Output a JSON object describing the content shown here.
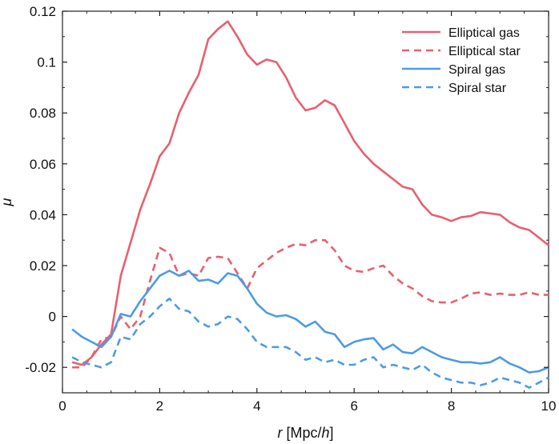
{
  "chart_data": {
    "type": "line",
    "title": "",
    "xlabel": {
      "prefix": "r",
      "middle": " [Mpc/",
      "h": "h",
      "suffix": "]"
    },
    "ylabel": "μ",
    "xlim": [
      0,
      10
    ],
    "ylim": [
      -0.03,
      0.12
    ],
    "xticks": [
      0,
      2,
      4,
      6,
      8,
      10
    ],
    "xtick_labels": [
      "0",
      "2",
      "4",
      "6",
      "8",
      "10"
    ],
    "yticks": [
      -0.02,
      0,
      0.02,
      0.04,
      0.06,
      0.08,
      0.1,
      0.12
    ],
    "ytick_labels": [
      "-0.02",
      "0",
      "0.02",
      "0.04",
      "0.06",
      "0.08",
      "0.1",
      "0.12"
    ],
    "grid": false,
    "legend_position": "top-right",
    "x": [
      0.2,
      0.4,
      0.6,
      0.8,
      1.0,
      1.2,
      1.4,
      1.6,
      1.8,
      2.0,
      2.2,
      2.4,
      2.6,
      2.8,
      3.0,
      3.2,
      3.4,
      3.6,
      3.8,
      4.0,
      4.2,
      4.4,
      4.6,
      4.8,
      5.0,
      5.2,
      5.4,
      5.6,
      5.8,
      6.0,
      6.2,
      6.4,
      6.6,
      6.8,
      7.0,
      7.2,
      7.4,
      7.6,
      7.8,
      8.0,
      8.2,
      8.4,
      8.6,
      8.8,
      9.0,
      9.2,
      9.4,
      9.6,
      9.8,
      10.0
    ],
    "series": [
      {
        "name": "Elliptical gas",
        "color": "#e8606e",
        "dash": "solid",
        "values": [
          -0.018,
          -0.019,
          -0.016,
          -0.011,
          -0.007,
          0.016,
          0.029,
          0.042,
          0.052,
          0.063,
          0.068,
          0.08,
          0.088,
          0.095,
          0.109,
          0.113,
          0.116,
          0.11,
          0.103,
          0.099,
          0.101,
          0.1,
          0.094,
          0.086,
          0.081,
          0.082,
          0.085,
          0.083,
          0.076,
          0.069,
          0.064,
          0.06,
          0.057,
          0.054,
          0.051,
          0.05,
          0.044,
          0.04,
          0.039,
          0.0375,
          0.039,
          0.0395,
          0.041,
          0.0405,
          0.04,
          0.037,
          0.035,
          0.034,
          0.031,
          0.028
        ]
      },
      {
        "name": "Elliptical star",
        "color": "#e8606e",
        "dash": "dashed",
        "values": [
          -0.02,
          -0.02,
          -0.016,
          -0.009,
          -0.008,
          0.0,
          -0.005,
          0.0,
          0.014,
          0.027,
          0.025,
          0.016,
          0.017,
          0.016,
          0.023,
          0.0235,
          0.023,
          0.017,
          0.011,
          0.019,
          0.022,
          0.025,
          0.027,
          0.0285,
          0.028,
          0.03,
          0.03,
          0.026,
          0.02,
          0.018,
          0.0175,
          0.019,
          0.02,
          0.016,
          0.013,
          0.011,
          0.008,
          0.006,
          0.0055,
          0.0055,
          0.007,
          0.009,
          0.0095,
          0.0085,
          0.009,
          0.0085,
          0.0085,
          0.0095,
          0.0085,
          0.0085
        ]
      },
      {
        "name": "Spiral gas",
        "color": "#4d9be6",
        "dash": "solid",
        "values": [
          -0.005,
          -0.008,
          -0.01,
          -0.012,
          -0.008,
          0.001,
          0.0,
          0.006,
          0.011,
          0.016,
          0.018,
          0.016,
          0.018,
          0.014,
          0.0145,
          0.013,
          0.017,
          0.016,
          0.011,
          0.005,
          0.0015,
          0.0,
          0.0005,
          -0.001,
          -0.004,
          -0.002,
          -0.006,
          -0.007,
          -0.012,
          -0.01,
          -0.009,
          -0.0085,
          -0.013,
          -0.011,
          -0.014,
          -0.0145,
          -0.012,
          -0.014,
          -0.016,
          -0.017,
          -0.018,
          -0.018,
          -0.0185,
          -0.018,
          -0.016,
          -0.0185,
          -0.02,
          -0.022,
          -0.0215,
          -0.02
        ]
      },
      {
        "name": "Spiral star",
        "color": "#4d9be6",
        "dash": "dashed",
        "values": [
          -0.016,
          -0.018,
          -0.019,
          -0.02,
          -0.018,
          -0.008,
          -0.009,
          -0.003,
          0.0,
          0.004,
          0.007,
          0.003,
          0.002,
          -0.002,
          -0.004,
          -0.003,
          0.0,
          -0.001,
          -0.005,
          -0.01,
          -0.012,
          -0.012,
          -0.012,
          -0.014,
          -0.017,
          -0.016,
          -0.018,
          -0.017,
          -0.019,
          -0.019,
          -0.017,
          -0.016,
          -0.02,
          -0.019,
          -0.02,
          -0.021,
          -0.019,
          -0.022,
          -0.024,
          -0.025,
          -0.026,
          -0.026,
          -0.027,
          -0.026,
          -0.024,
          -0.025,
          -0.026,
          -0.028,
          -0.026,
          -0.024
        ]
      }
    ]
  }
}
